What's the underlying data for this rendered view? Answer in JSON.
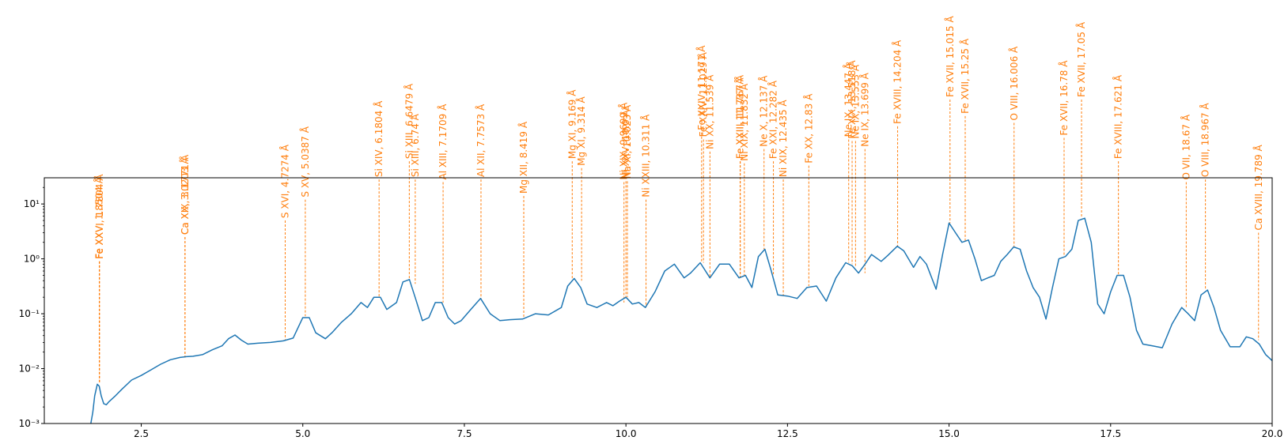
{
  "chart_data": {
    "type": "line",
    "title": "",
    "xlabel": "",
    "ylabel": "",
    "xlim": [
      1.0,
      20.0
    ],
    "ylim": [
      0.001,
      30
    ],
    "yscale": "log",
    "grid": false,
    "x_ticks": [
      2.5,
      5.0,
      7.5,
      10.0,
      12.5,
      15.0,
      17.5,
      20.0
    ],
    "x_tick_labels": [
      "2.5",
      "5.0",
      "7.5",
      "10.0",
      "12.5",
      "15.0",
      "17.5",
      "20.0"
    ],
    "y_ticks": [
      0.001,
      0.01,
      0.1,
      1,
      10
    ],
    "y_tick_labels": [
      "10⁻³",
      "10⁻²",
      "10⁻¹",
      "10⁰",
      "10¹"
    ],
    "colors": {
      "spectrum": "#1f77b4",
      "lines": "#ff7f0e"
    },
    "series": [
      {
        "x": [
          1.72,
          1.75,
          1.78,
          1.82,
          1.85,
          1.88,
          1.92,
          1.96,
          2.0,
          2.1,
          2.2,
          2.35,
          2.5,
          2.65,
          2.8,
          2.95,
          3.1,
          3.2,
          3.3,
          3.45,
          3.6,
          3.75,
          3.85,
          3.95,
          4.05,
          4.15,
          4.3,
          4.5,
          4.7,
          4.85,
          5.0,
          5.1,
          5.2,
          5.35,
          5.45,
          5.6,
          5.75,
          5.9,
          6.0,
          6.1,
          6.2,
          6.3,
          6.45,
          6.55,
          6.65,
          6.75,
          6.85,
          6.95,
          7.05,
          7.15,
          7.25,
          7.35,
          7.45,
          7.6,
          7.75,
          7.9,
          8.05,
          8.2,
          8.4,
          8.6,
          8.8,
          9.0,
          9.1,
          9.2,
          9.3,
          9.4,
          9.55,
          9.7,
          9.8,
          9.9,
          10.0,
          10.1,
          10.2,
          10.3,
          10.45,
          10.6,
          10.75,
          10.9,
          11.0,
          11.15,
          11.3,
          11.45,
          11.6,
          11.75,
          11.85,
          11.95,
          12.05,
          12.15,
          12.25,
          12.35,
          12.5,
          12.65,
          12.8,
          12.95,
          13.1,
          13.25,
          13.4,
          13.5,
          13.6,
          13.7,
          13.8,
          13.95,
          14.05,
          14.2,
          14.3,
          14.45,
          14.55,
          14.65,
          14.8,
          14.9,
          15.0,
          15.1,
          15.2,
          15.3,
          15.4,
          15.5,
          15.6,
          15.7,
          15.8,
          15.9,
          16.0,
          16.1,
          16.2,
          16.3,
          16.4,
          16.5,
          16.6,
          16.7,
          16.8,
          16.9,
          17.0,
          17.1,
          17.2,
          17.3,
          17.4,
          17.5,
          17.6,
          17.7,
          17.8,
          17.9,
          18.0,
          18.15,
          18.3,
          18.45,
          18.6,
          18.7,
          18.8,
          18.9,
          19.0,
          19.1,
          19.2,
          19.35,
          19.5,
          19.6,
          19.7,
          19.8,
          19.9,
          20.0
        ],
        "values": [
          0.001,
          0.0016,
          0.0032,
          0.0052,
          0.0048,
          0.0032,
          0.0023,
          0.0022,
          0.0025,
          0.0032,
          0.0042,
          0.0062,
          0.0075,
          0.0095,
          0.012,
          0.0145,
          0.016,
          0.0165,
          0.0168,
          0.018,
          0.022,
          0.026,
          0.035,
          0.041,
          0.033,
          0.028,
          0.029,
          0.03,
          0.032,
          0.036,
          0.085,
          0.085,
          0.045,
          0.035,
          0.045,
          0.07,
          0.1,
          0.16,
          0.13,
          0.2,
          0.2,
          0.12,
          0.16,
          0.38,
          0.42,
          0.18,
          0.075,
          0.085,
          0.16,
          0.16,
          0.085,
          0.065,
          0.075,
          0.12,
          0.19,
          0.1,
          0.075,
          0.078,
          0.08,
          0.1,
          0.095,
          0.13,
          0.32,
          0.44,
          0.3,
          0.15,
          0.13,
          0.16,
          0.14,
          0.17,
          0.2,
          0.15,
          0.16,
          0.13,
          0.25,
          0.6,
          0.8,
          0.45,
          0.55,
          0.85,
          0.45,
          0.8,
          0.8,
          0.45,
          0.5,
          0.3,
          1.1,
          1.5,
          0.6,
          0.22,
          0.21,
          0.19,
          0.3,
          0.32,
          0.17,
          0.45,
          0.85,
          0.75,
          0.55,
          0.8,
          1.2,
          0.9,
          1.15,
          1.7,
          1.4,
          0.7,
          1.1,
          0.8,
          0.28,
          1.2,
          4.5,
          3.0,
          2.0,
          2.2,
          1.0,
          0.4,
          0.45,
          0.5,
          0.9,
          1.2,
          1.65,
          1.5,
          0.6,
          0.3,
          0.2,
          0.08,
          0.3,
          1.0,
          1.1,
          1.5,
          5.0,
          5.5,
          2.0,
          0.15,
          0.1,
          0.25,
          0.5,
          0.5,
          0.2,
          0.05,
          0.028,
          0.026,
          0.024,
          0.065,
          0.13,
          0.1,
          0.075,
          0.22,
          0.27,
          0.13,
          0.05,
          0.025,
          0.025,
          0.038,
          0.035,
          0.028,
          0.018,
          0.014
        ]
      }
    ],
    "annotations": [
      {
        "x": 1.8504,
        "y": 0.0055,
        "top": 0.9,
        "label": "Fe XXV, 1.8504 Å"
      },
      {
        "x": 1.8554,
        "y": 0.0055,
        "top": 0.9,
        "label": "Fe XXVI, 1.7804 Å"
      },
      {
        "x": 3.1771,
        "y": 0.016,
        "top": 2.5,
        "label": "Ca XIX, 3.1771 Å"
      },
      {
        "x": 3.1774,
        "y": 0.016,
        "top": 2.5,
        "label": "Ca XX, 3.0203 Å"
      },
      {
        "x": 4.7274,
        "y": 0.034,
        "top": 5.0,
        "label": "S XVI, 4.7274 Å"
      },
      {
        "x": 5.0387,
        "y": 0.09,
        "top": 12,
        "label": "S XV, 5.0387 Å"
      },
      {
        "x": 6.1804,
        "y": 0.2,
        "top": 28,
        "label": "Si XIV, 6.1804 Å"
      },
      {
        "x": 6.6479,
        "y": 0.44,
        "top": 60,
        "label": "Si XIII, 6.6479 Å"
      },
      {
        "x": 6.74,
        "y": 0.35,
        "top": 28,
        "label": "Si XIII, 6.74 Å"
      },
      {
        "x": 7.1709,
        "y": 0.16,
        "top": 25,
        "label": "Al XIII, 7.1709 Å"
      },
      {
        "x": 7.7573,
        "y": 0.19,
        "top": 28,
        "label": "Al XII, 7.7573 Å"
      },
      {
        "x": 8.419,
        "y": 0.085,
        "top": 14,
        "label": "Mg XII, 8.419 Å"
      },
      {
        "x": 9.169,
        "y": 0.44,
        "top": 60,
        "label": "Mg XI, 9.169 Å"
      },
      {
        "x": 9.314,
        "y": 0.4,
        "top": 45,
        "label": "Mg XI, 9.314 Å"
      },
      {
        "x": 9.9699,
        "y": 0.16,
        "top": 25,
        "label": "Ni XIX, 9.9699 Å"
      },
      {
        "x": 10.0,
        "y": 0.2,
        "top": 26,
        "label": "Ni XXV, 10.0 Å"
      },
      {
        "x": 10.023,
        "y": 0.2,
        "top": 26,
        "label": "Na XI, 10.023 Å"
      },
      {
        "x": 10.311,
        "y": 0.13,
        "top": 12,
        "label": "Ni XXIII, 10.311 Å"
      },
      {
        "x": 11.171,
        "y": 0.85,
        "top": 200,
        "label": "Fe XXIV, 11.171 Å"
      },
      {
        "x": 11.2,
        "y": 0.85,
        "top": 150,
        "label": "Fe XXIV, 11.029 Å"
      },
      {
        "x": 11.3,
        "y": 0.45,
        "top": 90,
        "label": "Ni XX, 11.539 Å"
      },
      {
        "x": 11.767,
        "y": 0.45,
        "top": 60,
        "label": "Fe XXIII, 11.767 Å"
      },
      {
        "x": 11.77,
        "y": 0.45,
        "top": 60,
        "label": "Fe XXII, 11.737 Å"
      },
      {
        "x": 11.832,
        "y": 0.45,
        "top": 55,
        "label": "Ni XIX, 11.832 Å"
      },
      {
        "x": 12.137,
        "y": 1.5,
        "top": 100,
        "label": "Ne X, 12.137 Å"
      },
      {
        "x": 12.282,
        "y": 0.5,
        "top": 60,
        "label": "Fe XXI, 12.282 Å"
      },
      {
        "x": 12.435,
        "y": 0.21,
        "top": 28,
        "label": "Ni XIX, 12.435 Å"
      },
      {
        "x": 12.83,
        "y": 0.32,
        "top": 50,
        "label": "Fe XX, 12.83 Å"
      },
      {
        "x": 13.447,
        "y": 0.85,
        "top": 150,
        "label": "Ne IX, 13.447 Å"
      },
      {
        "x": 13.5,
        "y": 0.8,
        "top": 140,
        "label": "Fe XIX, 13.518 Å"
      },
      {
        "x": 13.553,
        "y": 0.7,
        "top": 140,
        "label": "Ne IX, 13.553 Å"
      },
      {
        "x": 13.699,
        "y": 0.55,
        "top": 100,
        "label": "Ne IX, 13.699 Å"
      },
      {
        "x": 14.204,
        "y": 1.7,
        "top": 260,
        "label": "Fe XVIII, 14.204 Å"
      },
      {
        "x": 15.015,
        "y": 4.5,
        "top": 800,
        "label": "Fe XVII, 15.015 Å"
      },
      {
        "x": 15.25,
        "y": 2.1,
        "top": 400,
        "label": "Fe XVII, 15.25 Å"
      },
      {
        "x": 16.006,
        "y": 1.65,
        "top": 300,
        "label": "O VIII, 16.006 Å"
      },
      {
        "x": 16.78,
        "y": 1.1,
        "top": 160,
        "label": "Fe XVII, 16.78 Å"
      },
      {
        "x": 17.05,
        "y": 5.5,
        "top": 800,
        "label": "Fe XVII, 17.05 Å"
      },
      {
        "x": 17.621,
        "y": 0.5,
        "top": 60,
        "label": "Fe XVIII, 17.621 Å"
      },
      {
        "x": 18.67,
        "y": 0.13,
        "top": 25,
        "label": "O VII, 18.67 Å"
      },
      {
        "x": 18.967,
        "y": 0.27,
        "top": 28,
        "label": "O VIII, 18.967 Å"
      },
      {
        "x": 19.789,
        "y": 0.033,
        "top": 3.0,
        "label": "Ca XVIII, 19.789 Å"
      }
    ]
  }
}
